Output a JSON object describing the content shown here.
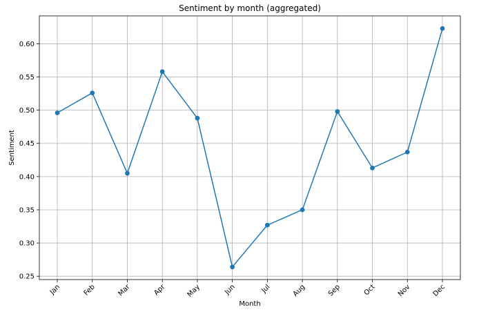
{
  "chart_data": {
    "type": "line",
    "title": "Sentiment by month (aggregated)",
    "xlabel": "Month",
    "ylabel": "Sentiment",
    "categories": [
      "Jan",
      "Feb",
      "Mar",
      "Apr",
      "May",
      "Jun",
      "Jul",
      "Aug",
      "Sep",
      "Oct",
      "Nov",
      "Dec"
    ],
    "series": [
      {
        "values": [
          0.496,
          0.526,
          0.405,
          0.558,
          0.488,
          0.264,
          0.327,
          0.35,
          0.498,
          0.413,
          0.437,
          0.623
        ],
        "color": "#1f77b4"
      }
    ],
    "yticks": [
      "0.25",
      "0.30",
      "0.35",
      "0.40",
      "0.45",
      "0.50",
      "0.55",
      "0.60"
    ],
    "ylim": [
      0.245,
      0.642
    ],
    "grid": true,
    "legend": "none"
  }
}
